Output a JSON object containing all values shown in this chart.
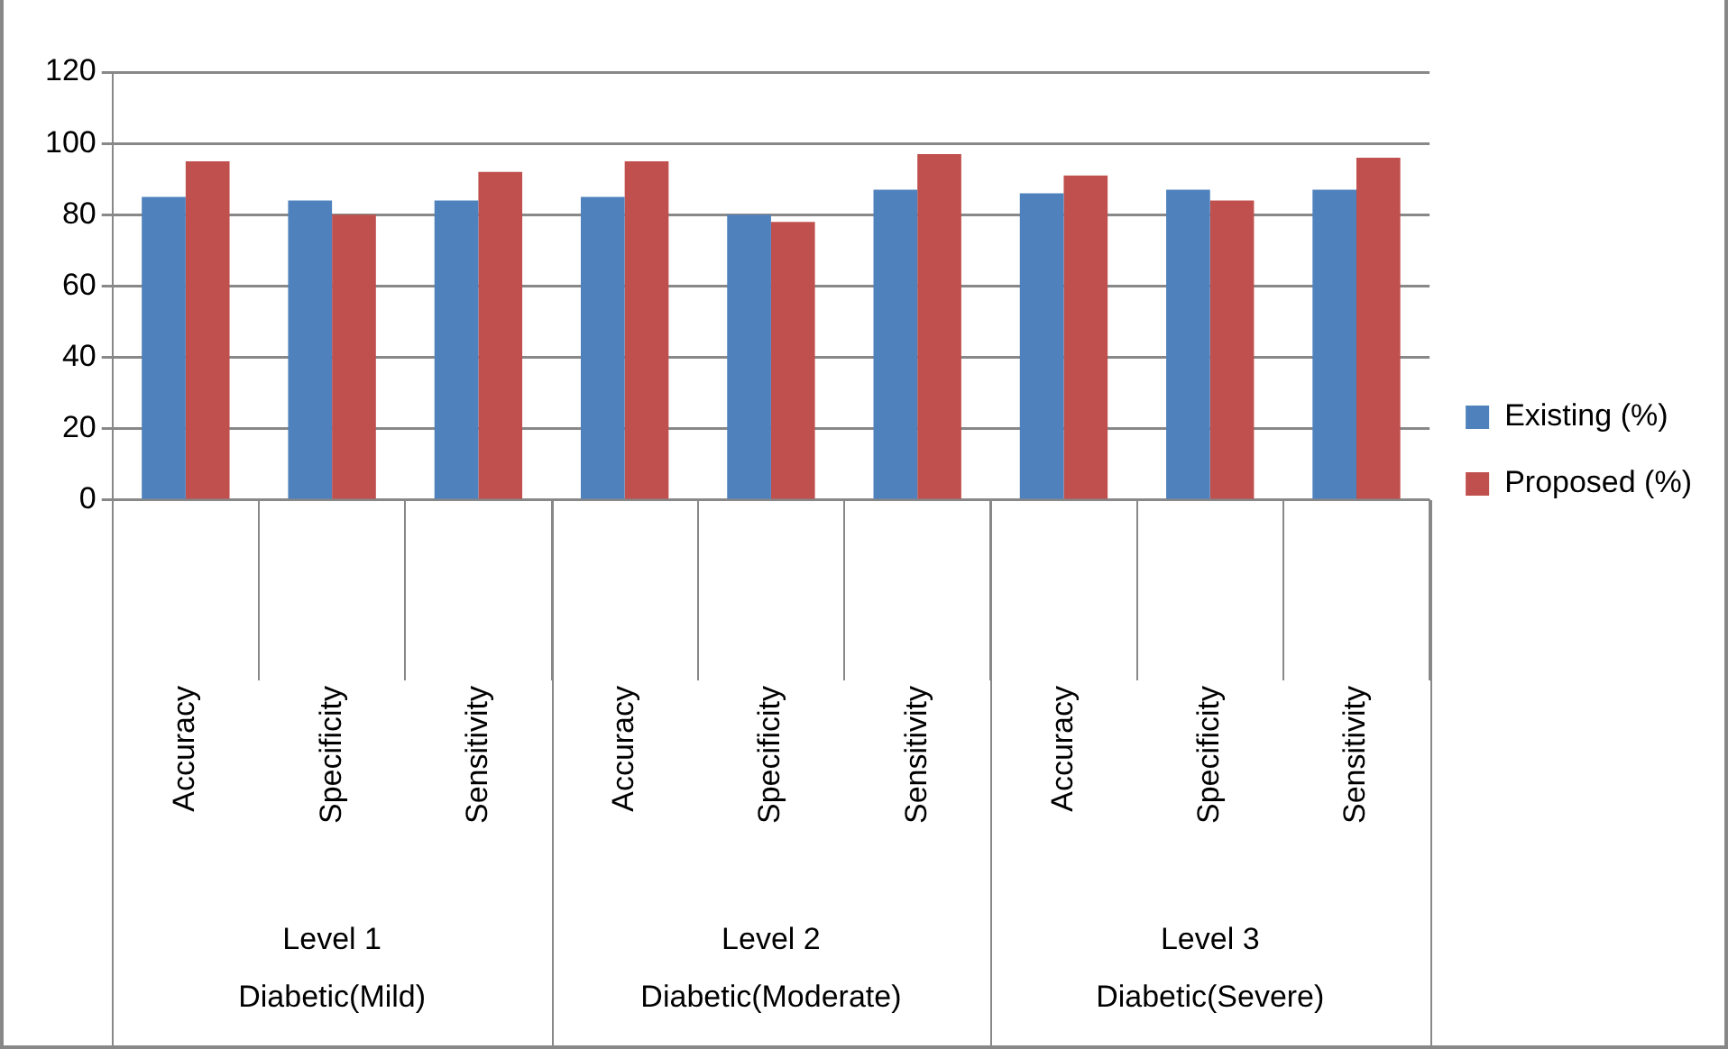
{
  "chart_data": {
    "type": "bar",
    "categories": [
      "Accuracy",
      "Specificity",
      "Sensitivity",
      "Accuracy",
      "Specificity",
      "Sensitivity",
      "Accuracy",
      "Specificity",
      "Sensitivity"
    ],
    "series": [
      {
        "name": "Existing (%)",
        "color": "#4f81bd",
        "values": [
          85,
          84,
          84,
          85,
          80,
          87,
          86,
          87,
          87
        ]
      },
      {
        "name": "Proposed (%)",
        "color": "#c0504d",
        "values": [
          95,
          80,
          92,
          95,
          78,
          97,
          91,
          84,
          96
        ]
      }
    ],
    "annotations": [
      "Level 1 Diabetic(Mild)",
      "Level 2 Diabetic(Moderate)",
      "Level 3 Diabetic(Severe)"
    ],
    "ylim": [
      0,
      120
    ],
    "yticks": [
      0,
      20,
      40,
      60,
      80,
      100,
      120
    ],
    "grid": "y",
    "legend": "right"
  }
}
